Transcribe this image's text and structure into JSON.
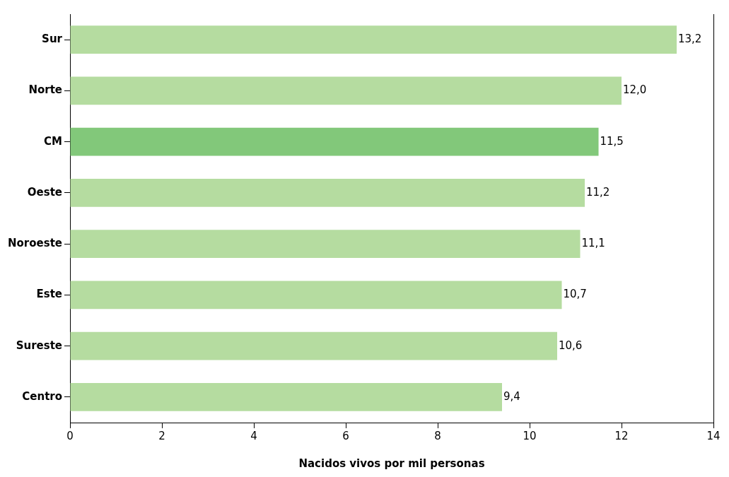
{
  "chart_data": {
    "type": "bar",
    "orientation": "horizontal",
    "categories": [
      "Sur",
      "Norte",
      "CM",
      "Oeste",
      "Noroeste",
      "Este",
      "Sureste",
      "Centro"
    ],
    "values": [
      13.2,
      12.0,
      11.5,
      11.2,
      11.1,
      10.7,
      10.6,
      9.4
    ],
    "colors": [
      "#b5dca0",
      "#b5dca0",
      "#82c87a",
      "#b5dca0",
      "#b5dca0",
      "#b5dca0",
      "#b5dca0",
      "#b5dca0"
    ],
    "value_labels": [
      "13,2",
      "12,0",
      "11,5",
      "11,2",
      "11,1",
      "10,7",
      "10,6",
      "9,4"
    ],
    "xlabel": "Nacidos vivos por mil personas",
    "xlim": [
      0,
      14
    ],
    "xticks": [
      0,
      2,
      4,
      6,
      8,
      10,
      12,
      14
    ],
    "grid": false,
    "legend": false
  }
}
